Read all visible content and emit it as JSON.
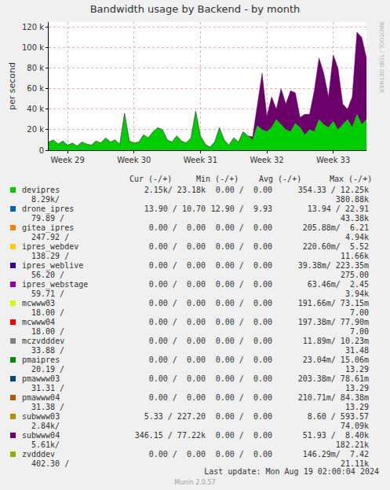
{
  "chart_data": {
    "type": "area",
    "title": "Bandwidth usage by Backend - by month",
    "y_label": "per second",
    "categories": [
      null,
      null,
      null,
      null,
      "Week 29",
      null,
      null,
      null,
      null,
      null,
      null,
      null,
      null,
      null,
      null,
      null,
      null,
      null,
      "Week 30",
      null,
      null,
      null,
      null,
      null,
      null,
      null,
      null,
      null,
      null,
      null,
      null,
      null,
      "Week 31",
      null,
      null,
      null,
      null,
      null,
      null,
      null,
      null,
      null,
      null,
      null,
      null,
      null,
      "Week 32",
      null,
      null,
      null,
      null,
      null,
      null,
      null,
      null,
      null,
      null,
      null,
      null,
      null,
      "Week 33",
      null,
      null,
      null,
      null,
      null,
      null,
      null
    ],
    "series": [
      {
        "name": "devipres",
        "color": "#00CC00",
        "values": [
          8000,
          10000,
          6000,
          9000,
          5000,
          7000,
          4000,
          8000,
          6000,
          5000,
          9000,
          7000,
          12000,
          8000,
          10000,
          6000,
          36000,
          9000,
          7000,
          8000,
          15000,
          12000,
          18000,
          22000,
          20000,
          10000,
          8000,
          14000,
          9000,
          7000,
          12000,
          38000,
          14000,
          6000,
          3000,
          8000,
          22000,
          10000,
          5000,
          12000,
          8000,
          18000,
          14000,
          10000,
          24000,
          20000,
          18000,
          22000,
          30000,
          25000,
          20000,
          18000,
          26000,
          22000,
          15000,
          20000,
          18000,
          30000,
          25000,
          22000,
          28000,
          20000,
          25000,
          30000,
          22000,
          35000,
          25000,
          30000
        ]
      },
      {
        "name": "subwww04",
        "color": "#6B006B",
        "values": [
          0,
          0,
          0,
          0,
          0,
          0,
          0,
          0,
          0,
          0,
          0,
          0,
          0,
          0,
          0,
          0,
          0,
          0,
          0,
          0,
          0,
          0,
          0,
          0,
          0,
          0,
          0,
          0,
          0,
          0,
          0,
          0,
          0,
          0,
          0,
          0,
          0,
          0,
          0,
          0,
          0,
          0,
          0,
          3000,
          20000,
          55000,
          15000,
          30000,
          10000,
          35000,
          25000,
          40000,
          30000,
          10000,
          20000,
          15000,
          40000,
          60000,
          50000,
          30000,
          65000,
          60000,
          20000,
          10000,
          30000,
          80000,
          85000,
          60000
        ]
      }
    ],
    "ylim": [
      0,
      125000
    ],
    "yticks": [
      0,
      {
        "value": 20000,
        "label": "20 k"
      },
      {
        "value": 40000,
        "label": "40 k"
      },
      {
        "value": 60000,
        "label": "60 k"
      },
      {
        "value": 80000,
        "label": "80 k"
      },
      {
        "value": 100000,
        "label": "100 k"
      },
      {
        "value": 120000,
        "label": "120 k"
      }
    ],
    "stacked": true,
    "grid": true
  },
  "side_label": "RRDTOOL / TOBI OETIKER",
  "legend_table": {
    "columns": [
      "Cur (-/+)",
      "Min (-/+)",
      "Avg (-/+)",
      "Max (-/+)"
    ],
    "rows": [
      {
        "name": "devipres",
        "color": "#00CC00",
        "cur": "2.15k/ 23.18k",
        "min": "0.00 /  0.00",
        "avg": "354.33 / 12.25k",
        "max": [
          "8.29k/",
          "380.88k"
        ]
      },
      {
        "name": "drone_ipres",
        "color": "#0066B3",
        "cur": "13.90 / 10.70",
        "min": "12.90 /  9.93",
        "avg": "13.94 / 22.91",
        "max": [
          "79.89 /",
          "43.38k"
        ]
      },
      {
        "name": "gitea_ipres",
        "color": "#FF8000",
        "cur": "0.00 /  0.00",
        "min": "0.00 /  0.00",
        "avg": "205.88m/  6.21",
        "max": [
          "247.92 /",
          "4.94k"
        ]
      },
      {
        "name": "ipres_webdev",
        "color": "#FFCC00",
        "cur": "0.00 /  0.00",
        "min": "0.00 /  0.00",
        "avg": "220.60m/  5.52",
        "max": [
          "138.29 /",
          "11.66k"
        ]
      },
      {
        "name": "ipres_weblive",
        "color": "#330099",
        "cur": "0.00 /  0.00",
        "min": "0.00 /  0.00",
        "avg": "39.38m/ 223.35m",
        "max": [
          "56.20 /",
          "275.00"
        ]
      },
      {
        "name": "ipres_webstage",
        "color": "#990099",
        "cur": "0.00 /  0.00",
        "min": "0.00 /  0.00",
        "avg": "63.46m/  2.45",
        "max": [
          "59.71 /",
          "3.94k"
        ]
      },
      {
        "name": "mcwww03",
        "color": "#CCFF00",
        "cur": "0.00 /  0.00",
        "min": "0.00 /  0.00",
        "avg": "191.66m/ 73.15m",
        "max": [
          "18.00 /",
          "7.00"
        ]
      },
      {
        "name": "mcwww04",
        "color": "#FF0000",
        "cur": "0.00 /  0.00",
        "min": "0.00 /  0.00",
        "avg": "197.38m/ 77.90m",
        "max": [
          "18.00 /",
          "7.00"
        ]
      },
      {
        "name": "mczvdddev",
        "color": "#808080",
        "cur": "0.00 /  0.00",
        "min": "0.00 /  0.00",
        "avg": "11.89m/ 10.23m",
        "max": [
          "33.88 /",
          "31.48"
        ]
      },
      {
        "name": "pmaipres",
        "color": "#008F00",
        "cur": "0.00 /  0.00",
        "min": "0.00 /  0.00",
        "avg": "23.04m/ 15.06m",
        "max": [
          "20.19 /",
          "13.29"
        ]
      },
      {
        "name": "pmawww03",
        "color": "#00487D",
        "cur": "0.00 /  0.00",
        "min": "0.00 /  0.00",
        "avg": "203.38m/ 78.61m",
        "max": [
          "31.31 /",
          "13.29"
        ]
      },
      {
        "name": "pmawww04",
        "color": "#B35A00",
        "cur": "0.00 /  0.00",
        "min": "0.00 /  0.00",
        "avg": "210.71m/ 84.38m",
        "max": [
          "31.38 /",
          "13.29"
        ]
      },
      {
        "name": "subwww03",
        "color": "#B38F00",
        "cur": "5.33 / 227.20",
        "min": "0.00 /  0.00",
        "avg": "8.60 / 593.57",
        "max": [
          "2.84k/",
          "74.09k"
        ]
      },
      {
        "name": "subwww04",
        "color": "#6B006B",
        "cur": "346.15 / 77.22k",
        "min": "0.00 /  0.00",
        "avg": "51.93 /  8.40k",
        "max": [
          "5.61k/",
          "182.21k"
        ]
      },
      {
        "name": "zvdddev",
        "color": "#8FB300",
        "cur": "0.00 /  0.00",
        "min": "0.00 /  0.00",
        "avg": "146.29m/  7.42",
        "max": [
          "402.30 /",
          "21.11k"
        ]
      }
    ]
  },
  "last_update": "Last update: Mon Aug 19 02:00:04 2024",
  "version": "Munin 2.0.57"
}
